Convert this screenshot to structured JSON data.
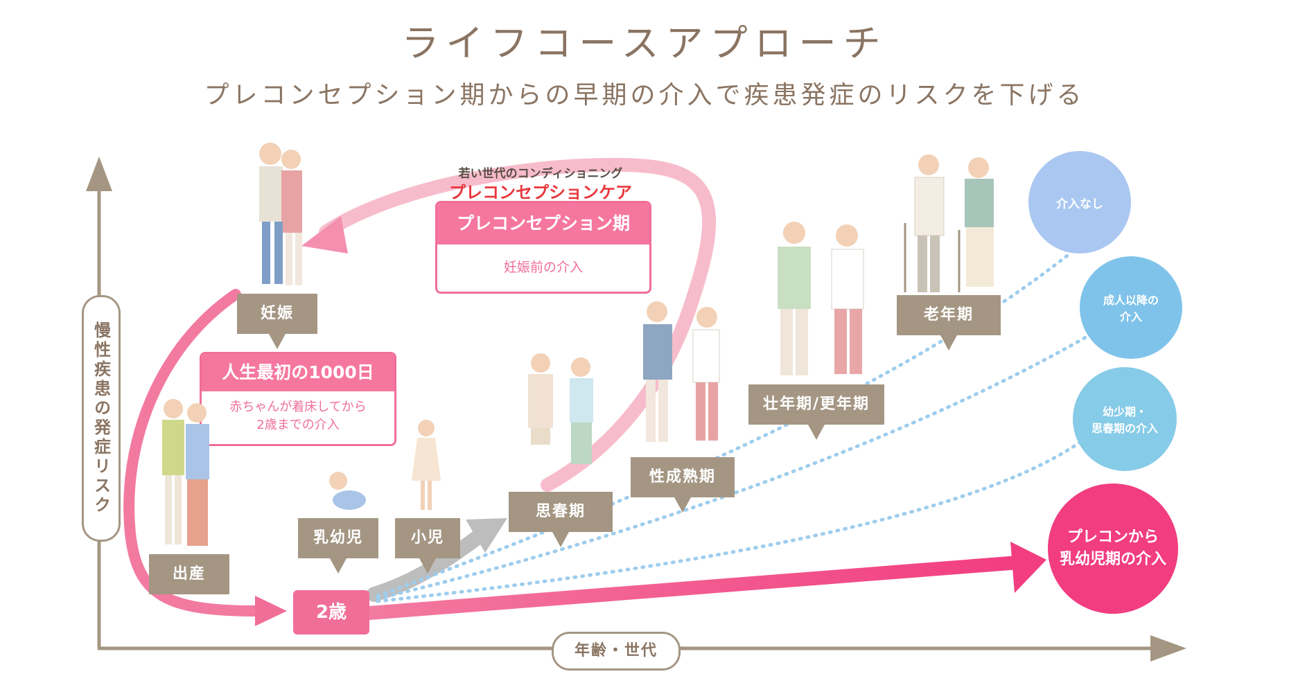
{
  "title": "ライフコースアプローチ",
  "subtitle": "プレコンセプション期からの早期の介入で疾患発症のリスクを下げる",
  "axes": {
    "y_label": "慢性疾患の発症リスク",
    "x_label": "年齢・世代"
  },
  "stages": {
    "pregnancy": "妊娠",
    "birth": "出産",
    "infant": "乳幼児",
    "child": "小児",
    "two_years": "2歳",
    "puberty": "思春期",
    "maturity": "性成熟期",
    "middle_age": "壮年期/更年期",
    "old_age": "老年期"
  },
  "preconception": {
    "caption_top": "若い世代のコンディショニング",
    "caption_main": "プレコンセプションケア",
    "box_title": "プレコンセプション期",
    "box_body": "妊娠前の介入"
  },
  "first1000": {
    "title": "人生最初の1000日",
    "body_line1": "赤ちゃんが着床してから",
    "body_line2": "2歳までの介入"
  },
  "outcomes": {
    "none": "介入なし",
    "adult_line1": "成人以降の",
    "adult_line2": "介入",
    "youth_line1": "幼少期・",
    "youth_line2": "思春期の介入",
    "precon_line1": "プレコンから",
    "precon_line2": "乳幼児期の介入"
  },
  "colors": {
    "pink": "#f06e98",
    "light_pink": "#f7b3c8",
    "hot_pink": "#f23d80",
    "beige": "#a49683",
    "blue_light": "#a9c7f0",
    "blue_mid": "#7fc3ea",
    "blue_cyan": "#86cbe8",
    "dotted": "#9dcdee"
  },
  "icons": {
    "couple_pregnant": "pregnant-couple-icon",
    "parents_baby": "parents-with-baby-icon",
    "crawling_baby": "crawling-baby-icon",
    "child": "child-icon",
    "teens": "teen-couple-icon",
    "young_adults": "young-adults-icon",
    "middle_aged": "middle-aged-couple-icon",
    "elderly": "elderly-couple-icon"
  }
}
